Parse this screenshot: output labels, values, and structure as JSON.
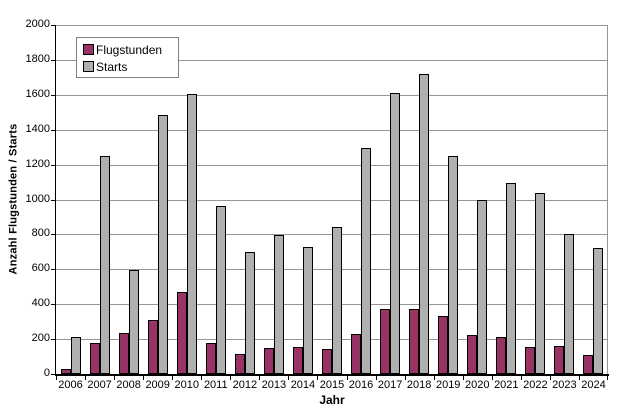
{
  "chart_data": {
    "type": "bar",
    "title": "",
    "xlabel": "Jahr",
    "ylabel": "Anzahl Flugstunden / Starts",
    "ylim": [
      0,
      2000
    ],
    "ytick_step": 200,
    "y_ticks": [
      0,
      200,
      400,
      600,
      800,
      1000,
      1200,
      1400,
      1600,
      1800,
      2000
    ],
    "grid": true,
    "gridline_color": "#969696",
    "axis_color": "#000000",
    "plot_background": "#FFFFFF",
    "legend_position": "top-left",
    "categories": [
      "2006",
      "2007",
      "2008",
      "2009",
      "2010",
      "2011",
      "2012",
      "2013",
      "2014",
      "2015",
      "2016",
      "2017",
      "2018",
      "2019",
      "2020",
      "2021",
      "2022",
      "2023",
      "2024"
    ],
    "series": [
      {
        "name": "Flugstunden",
        "color": "#993366",
        "values": [
          30,
          175,
          235,
          310,
          470,
          175,
          115,
          150,
          155,
          145,
          230,
          370,
          375,
          330,
          225,
          210,
          155,
          160,
          110
        ]
      },
      {
        "name": "Starts",
        "color": "#B0B0B0",
        "values": [
          210,
          1250,
          595,
          1485,
          1605,
          965,
          700,
          795,
          730,
          840,
          1295,
          1610,
          1720,
          1250,
          1000,
          1095,
          1040,
          800,
          720
        ]
      }
    ]
  }
}
